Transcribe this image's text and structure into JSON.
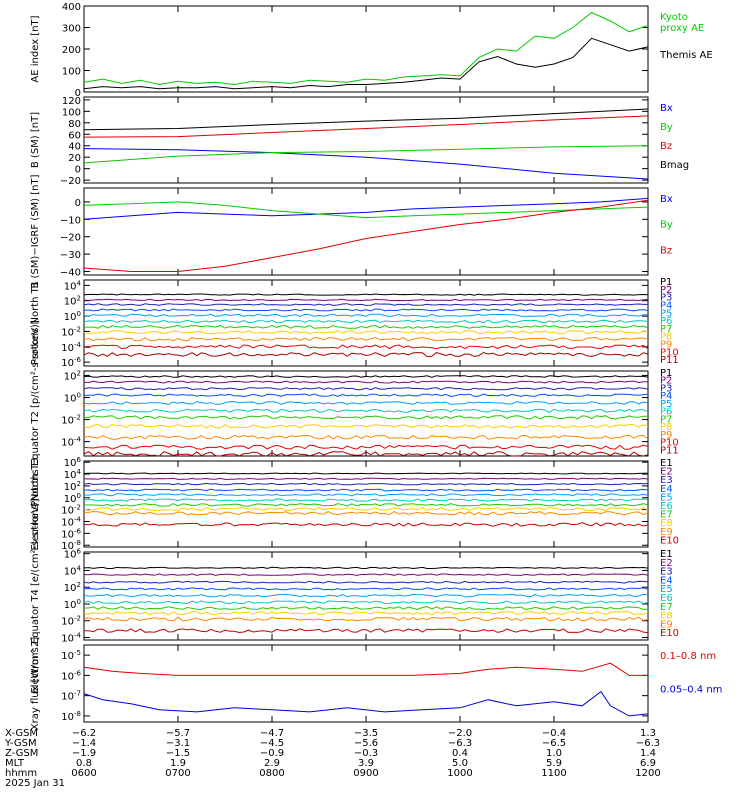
{
  "chart_data": [
    {
      "type": "line",
      "ylabel": "AE index [nT]",
      "ylim": [
        0,
        400
      ],
      "yticks": [
        {
          "v": 0,
          "l": "0"
        },
        {
          "v": 100,
          "l": "100"
        },
        {
          "v": 200,
          "l": "200"
        },
        {
          "v": 300,
          "l": "300"
        },
        {
          "v": 400,
          "l": "400"
        }
      ],
      "series": [
        {
          "name": "Kyoto proxy AE",
          "color": "#00cc00",
          "labelLines": [
            "Kyoto",
            "proxy AE"
          ],
          "x": [
            0,
            0.2,
            0.4,
            0.6,
            0.8,
            1.0,
            1.2,
            1.4,
            1.6,
            1.8,
            2.0,
            2.2,
            2.4,
            2.6,
            2.8,
            3.0,
            3.2,
            3.4,
            3.6,
            3.8,
            4.0,
            4.2,
            4.4,
            4.6,
            4.8,
            5.0,
            5.2,
            5.4,
            5.6,
            5.8,
            6.0
          ],
          "y": [
            45,
            60,
            40,
            55,
            35,
            50,
            40,
            45,
            35,
            50,
            45,
            40,
            55,
            50,
            45,
            60,
            55,
            70,
            75,
            80,
            75,
            160,
            200,
            190,
            260,
            250,
            300,
            370,
            330,
            280,
            310
          ]
        },
        {
          "name": "Themis AE",
          "color": "#000000",
          "labelLines": [
            "Themis AE"
          ],
          "x": [
            0,
            0.2,
            0.4,
            0.6,
            0.8,
            1.0,
            1.2,
            1.4,
            1.6,
            1.8,
            2.0,
            2.2,
            2.4,
            2.6,
            2.8,
            3.0,
            3.2,
            3.4,
            3.6,
            3.8,
            4.0,
            4.2,
            4.4,
            4.6,
            4.8,
            5.0,
            5.2,
            5.4,
            5.6,
            5.8,
            6.0
          ],
          "y": [
            15,
            25,
            20,
            25,
            15,
            20,
            20,
            25,
            15,
            20,
            25,
            20,
            30,
            25,
            35,
            35,
            40,
            45,
            55,
            65,
            60,
            140,
            165,
            130,
            115,
            130,
            160,
            250,
            220,
            190,
            210
          ]
        }
      ]
    },
    {
      "type": "line",
      "ylabel": "B (SM) [nT]",
      "ylim": [
        -25,
        125
      ],
      "yticks": [
        {
          "v": -20,
          "l": "−20"
        },
        {
          "v": 0,
          "l": "0"
        },
        {
          "v": 20,
          "l": "20"
        },
        {
          "v": 40,
          "l": "40"
        },
        {
          "v": 60,
          "l": "60"
        },
        {
          "v": 80,
          "l": "80"
        },
        {
          "v": 100,
          "l": "100"
        },
        {
          "v": 120,
          "l": "120"
        }
      ],
      "series": [
        {
          "name": "Bx",
          "color": "#0000ff",
          "labelLines": [
            "Bx"
          ],
          "x": [
            0,
            1,
            2,
            3,
            4,
            5,
            6
          ],
          "y": [
            35,
            33,
            28,
            20,
            8,
            -8,
            -18
          ]
        },
        {
          "name": "By",
          "color": "#00cc00",
          "labelLines": [
            "By"
          ],
          "x": [
            0,
            1,
            2,
            3,
            4,
            5,
            6
          ],
          "y": [
            10,
            22,
            28,
            30,
            34,
            38,
            40
          ]
        },
        {
          "name": "Bz",
          "color": "#dd0000",
          "labelLines": [
            "Bz"
          ],
          "x": [
            0,
            1,
            2,
            3,
            4,
            5,
            6
          ],
          "y": [
            55,
            56,
            63,
            70,
            77,
            85,
            92
          ]
        },
        {
          "name": "Bmag",
          "color": "#000000",
          "labelLines": [
            "Bmag"
          ],
          "x": [
            0,
            1,
            2,
            3,
            4,
            5,
            6
          ],
          "y": [
            68,
            70,
            77,
            83,
            88,
            96,
            104
          ]
        }
      ]
    },
    {
      "type": "line",
      "ylabel": "B (SM)−IGRF (SM) [nT]",
      "ylim": [
        -42,
        8
      ],
      "yticks": [
        {
          "v": -40,
          "l": "−40"
        },
        {
          "v": -30,
          "l": "−30"
        },
        {
          "v": -20,
          "l": "−20"
        },
        {
          "v": -10,
          "l": "−10"
        },
        {
          "v": 0,
          "l": "0"
        }
      ],
      "series": [
        {
          "name": "Bx",
          "color": "#0000ff",
          "labelLines": [
            "Bx"
          ],
          "x": [
            0,
            0.5,
            1,
            1.5,
            2,
            2.5,
            3,
            3.5,
            4,
            4.5,
            5,
            5.5,
            6
          ],
          "y": [
            -10,
            -8,
            -6,
            -7,
            -8,
            -7,
            -6,
            -4,
            -3,
            -2,
            -1,
            0,
            2
          ]
        },
        {
          "name": "By",
          "color": "#00cc00",
          "labelLines": [
            "By"
          ],
          "x": [
            0,
            0.5,
            1,
            1.5,
            2,
            2.5,
            3,
            3.5,
            4,
            4.5,
            5,
            5.5,
            6
          ],
          "y": [
            -2,
            -1,
            0,
            -2,
            -5,
            -7,
            -9,
            -8,
            -7,
            -6,
            -5,
            -4,
            -3
          ]
        },
        {
          "name": "Bz",
          "color": "#dd0000",
          "labelLines": [
            "Bz"
          ],
          "x": [
            0,
            0.5,
            1,
            1.5,
            2,
            2.5,
            3,
            3.5,
            4,
            4.5,
            5,
            5.5,
            6
          ],
          "y": [
            -38,
            -40,
            -40,
            -37,
            -32,
            -27,
            -21,
            -17,
            -13,
            -10,
            -6,
            -3,
            1
          ]
        }
      ]
    },
    {
      "type": "line",
      "ylabel": "Protons North T1",
      "ylog": true,
      "ylim": [
        -6.5,
        4.7
      ],
      "yticks": [
        {
          "v": 4,
          "l": "10^4"
        },
        {
          "v": 2,
          "l": "10^2"
        },
        {
          "v": 0,
          "l": "10^0"
        },
        {
          "v": -2,
          "l": "10^-2"
        },
        {
          "v": -4,
          "l": "10^-4"
        },
        {
          "v": -6,
          "l": "10^-6"
        }
      ],
      "series": [
        {
          "name": "P1",
          "color": "#000000",
          "labelLines": [
            "P1"
          ],
          "y": 2.8
        },
        {
          "name": "P2",
          "color": "#800080",
          "labelLines": [
            "P2"
          ],
          "y": 2.1
        },
        {
          "name": "P3",
          "color": "#2020b0",
          "labelLines": [
            "P3"
          ],
          "y": 1.5
        },
        {
          "name": "P4",
          "color": "#0050ff",
          "labelLines": [
            "P4"
          ],
          "y": 0.8
        },
        {
          "name": "P5",
          "color": "#00a0ff",
          "labelLines": [
            "P5"
          ],
          "y": 0.1
        },
        {
          "name": "P6",
          "color": "#00ccbb",
          "labelLines": [
            "P6"
          ],
          "y": -0.7
        },
        {
          "name": "P7",
          "color": "#22cc00",
          "labelLines": [
            "P7"
          ],
          "y": -1.4
        },
        {
          "name": "P8",
          "color": "#ffcc00",
          "labelLines": [
            "P8"
          ],
          "y": -2.1
        },
        {
          "name": "P9",
          "color": "#ff8800",
          "labelLines": [
            "P9"
          ],
          "y": -3.0
        },
        {
          "name": "P10",
          "color": "#ee0000",
          "labelLines": [
            "P10"
          ],
          "y": -4.0
        },
        {
          "name": "P11",
          "color": "#aa0000",
          "labelLines": [
            "P11"
          ],
          "y": -5.0
        }
      ]
    },
    {
      "type": "line",
      "ylabel": "Protons Equator T2 [p/(cm²-s-sr-keV)]",
      "ylog": true,
      "ylim": [
        -5.3,
        2.4
      ],
      "yticks": [
        {
          "v": 2,
          "l": "10^2"
        },
        {
          "v": 0,
          "l": "10^0"
        },
        {
          "v": -2,
          "l": "10^-2"
        },
        {
          "v": -4,
          "l": "10^-4"
        }
      ],
      "series": [
        {
          "name": "P1",
          "color": "#000000",
          "labelLines": [
            "P1"
          ],
          "y": 1.9
        },
        {
          "name": "P2",
          "color": "#800080",
          "labelLines": [
            "P2"
          ],
          "y": 1.4
        },
        {
          "name": "P3",
          "color": "#2020b0",
          "labelLines": [
            "P3"
          ],
          "y": 0.8
        },
        {
          "name": "P4",
          "color": "#0050ff",
          "labelLines": [
            "P4"
          ],
          "y": 0.2
        },
        {
          "name": "P5",
          "color": "#00a0ff",
          "labelLines": [
            "P5"
          ],
          "y": -0.5
        },
        {
          "name": "P6",
          "color": "#00ccbb",
          "labelLines": [
            "P6"
          ],
          "y": -1.2
        },
        {
          "name": "P7",
          "color": "#22cc00",
          "labelLines": [
            "P7"
          ],
          "y": -1.8
        },
        {
          "name": "P8",
          "color": "#ffcc00",
          "labelLines": [
            "P8"
          ],
          "y": -2.6
        },
        {
          "name": "P9",
          "color": "#ff8800",
          "labelLines": [
            "P9"
          ],
          "y": -3.6
        },
        {
          "name": "P10",
          "color": "#ee0000",
          "labelLines": [
            "P10"
          ],
          "y": -4.5
        },
        {
          "name": "P11",
          "color": "#aa0000",
          "labelLines": [
            "P11"
          ],
          "y": -5.1
        }
      ]
    },
    {
      "type": "line",
      "ylabel": "Electrons North T3",
      "ylog": true,
      "ylim": [
        -8.3,
        6.2
      ],
      "yticks": [
        {
          "v": 6,
          "l": "10^6"
        },
        {
          "v": 4,
          "l": "10^4"
        },
        {
          "v": 2,
          "l": "10^2"
        },
        {
          "v": 0,
          "l": "10^0"
        },
        {
          "v": -2,
          "l": "10^-2"
        },
        {
          "v": -4,
          "l": "10^-4"
        },
        {
          "v": -6,
          "l": "10^-6"
        },
        {
          "v": -8,
          "l": "10^-8"
        }
      ],
      "series": [
        {
          "name": "E1",
          "color": "#000000",
          "labelLines": [
            "E1"
          ],
          "y": 4.1
        },
        {
          "name": "E2",
          "color": "#800080",
          "labelLines": [
            "E2"
          ],
          "y": 3.2
        },
        {
          "name": "E3",
          "color": "#2020b0",
          "labelLines": [
            "E3"
          ],
          "y": 2.3
        },
        {
          "name": "E4",
          "color": "#0050ff",
          "labelLines": [
            "E4"
          ],
          "y": 1.3
        },
        {
          "name": "E5",
          "color": "#00a0ff",
          "labelLines": [
            "E5"
          ],
          "y": 0.5
        },
        {
          "name": "E6",
          "color": "#00ccbb",
          "labelLines": [
            "E6"
          ],
          "y": -0.4
        },
        {
          "name": "E7",
          "color": "#22cc00",
          "labelLines": [
            "E7"
          ],
          "y": -1.2
        },
        {
          "name": "E8",
          "color": "#ffcc00",
          "labelLines": [
            "E8"
          ],
          "y": -1.9
        },
        {
          "name": "E9",
          "color": "#ff8800",
          "labelLines": [
            "E9"
          ],
          "y": -2.6
        },
        {
          "name": "E10",
          "color": "#cc0000",
          "labelLines": [
            "E10"
          ],
          "y": -4.5
        }
      ]
    },
    {
      "type": "line",
      "ylabel": "Electrons Equator T4 [e/(cm²-s-sr-keV)]",
      "ylog": true,
      "ylim": [
        -4.3,
        6.2
      ],
      "yticks": [
        {
          "v": 6,
          "l": "10^6"
        },
        {
          "v": 4,
          "l": "10^4"
        },
        {
          "v": 2,
          "l": "10^2"
        },
        {
          "v": 0,
          "l": "10^0"
        },
        {
          "v": -2,
          "l": "10^-2"
        },
        {
          "v": -4,
          "l": "10^-4"
        }
      ],
      "series": [
        {
          "name": "E1",
          "color": "#000000",
          "labelLines": [
            "E1"
          ],
          "y": 4.3
        },
        {
          "name": "E2",
          "color": "#800080",
          "labelLines": [
            "E2"
          ],
          "y": 3.5
        },
        {
          "name": "E3",
          "color": "#2020b0",
          "labelLines": [
            "E3"
          ],
          "y": 2.6
        },
        {
          "name": "E4",
          "color": "#0050ff",
          "labelLines": [
            "E4"
          ],
          "y": 1.8
        },
        {
          "name": "E5",
          "color": "#00a0ff",
          "labelLines": [
            "E5"
          ],
          "y": 1.0
        },
        {
          "name": "E6",
          "color": "#00ccbb",
          "labelLines": [
            "E6"
          ],
          "y": 0.2
        },
        {
          "name": "E7",
          "color": "#22cc00",
          "labelLines": [
            "E7"
          ],
          "y": -0.5
        },
        {
          "name": "E8",
          "color": "#ffcc00",
          "labelLines": [
            "E8"
          ],
          "y": -1.1
        },
        {
          "name": "E9",
          "color": "#ff8800",
          "labelLines": [
            "E9"
          ],
          "y": -1.8
        },
        {
          "name": "E10",
          "color": "#cc0000",
          "labelLines": [
            "E10"
          ],
          "y": -3.2
        }
      ]
    },
    {
      "type": "line",
      "ylabel": "Xray flux [W/m^2]",
      "ylog": true,
      "ylim": [
        -8.3,
        -4.5
      ],
      "yticks": [
        {
          "v": -5,
          "l": "10^-5"
        },
        {
          "v": -6,
          "l": "10^-6"
        },
        {
          "v": -7,
          "l": "10^-7"
        },
        {
          "v": -8,
          "l": "10^-8"
        }
      ],
      "series": [
        {
          "name": "0.1–0.8 nm",
          "color": "#dd0000",
          "labelLines": [
            "0.1–0.8 nm"
          ],
          "x": [
            0,
            0.3,
            0.6,
            1,
            1.5,
            2,
            2.5,
            3,
            3.5,
            4,
            4.3,
            4.6,
            5,
            5.3,
            5.6,
            5.8,
            6
          ],
          "y": [
            -5.6,
            -5.8,
            -5.9,
            -6.0,
            -6.0,
            -6.0,
            -6.0,
            -6.0,
            -6.0,
            -5.9,
            -5.7,
            -5.6,
            -5.7,
            -5.8,
            -5.4,
            -6.0,
            -6.0
          ]
        },
        {
          "name": "0.05–0.4 nm",
          "color": "#0000dd",
          "labelLines": [
            "0.05–0.4 nm"
          ],
          "x": [
            0,
            0.2,
            0.5,
            0.8,
            1.2,
            1.6,
            2,
            2.4,
            2.8,
            3.2,
            3.6,
            4,
            4.3,
            4.6,
            5,
            5.3,
            5.5,
            5.6,
            5.8,
            6
          ],
          "y": [
            -6.9,
            -7.2,
            -7.4,
            -7.7,
            -7.8,
            -7.6,
            -7.7,
            -7.8,
            -7.6,
            -7.8,
            -7.7,
            -7.6,
            -7.2,
            -7.5,
            -7.3,
            -7.5,
            -6.8,
            -7.5,
            -8.0,
            -7.9
          ]
        }
      ]
    }
  ],
  "xaxis": {
    "rows": [
      {
        "label": "X-GSM",
        "values": [
          "−6.2",
          "−5.7",
          "−4.7",
          "−3.5",
          "−2.0",
          "−0.4",
          "1.3"
        ]
      },
      {
        "label": "Y-GSM",
        "values": [
          "−1.4",
          "−3.1",
          "−4.5",
          "−5.6",
          "−6.3",
          "−6.5",
          "−6.3"
        ]
      },
      {
        "label": "Z-GSM",
        "values": [
          "−1.9",
          "−1.5",
          "−0.9",
          "−0.3",
          "0.4",
          "1.0",
          "1.4"
        ]
      },
      {
        "label": "MLT",
        "values": [
          "0.8",
          "1.9",
          "2.9",
          "3.9",
          "5.0",
          "5.9",
          "6.9"
        ]
      },
      {
        "label": "hhmm",
        "values": [
          "0600",
          "0700",
          "0800",
          "0900",
          "1000",
          "1100",
          "1200"
        ]
      }
    ],
    "date": "2025 Jan 31"
  }
}
